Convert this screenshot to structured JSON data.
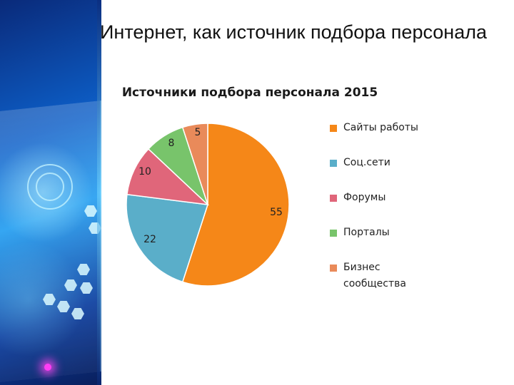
{
  "slide": {
    "title": "Интернет, как источник подбора персонала"
  },
  "decoration": {
    "side_panel_icon": "tech-hexagon-art"
  },
  "chart_data": {
    "type": "pie",
    "title": "Источники подбора персонала 2015",
    "categories": [
      "Сайты работы",
      "Соц.сети",
      "Форумы",
      "Порталы",
      "Бизнес сообщества"
    ],
    "values": [
      55,
      22,
      10,
      8,
      5
    ],
    "data_labels": [
      "55",
      "22",
      "10",
      "8",
      "5"
    ],
    "colors": [
      "#f58718",
      "#5aaec9",
      "#e0667a",
      "#78c46b",
      "#e98a5a"
    ],
    "legend_placement": "right"
  }
}
